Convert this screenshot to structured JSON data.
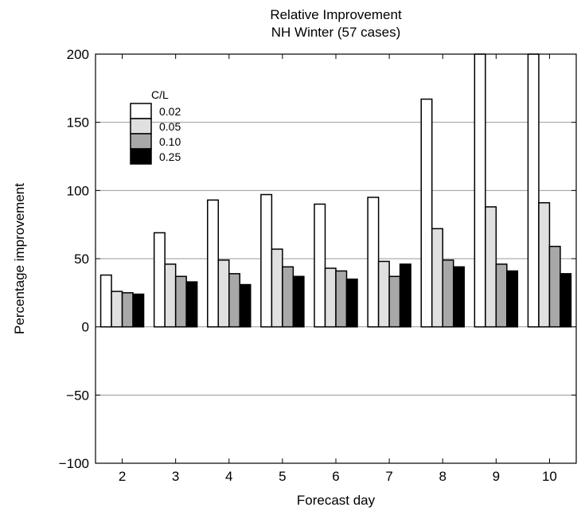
{
  "chart_data": {
    "type": "bar",
    "title": "Relative Improvement",
    "subtitle": "NH Winter (57 cases)",
    "xlabel": "Forecast day",
    "ylabel": "Percentage improvement",
    "ylim": [
      -100,
      200
    ],
    "yticks": [
      -100,
      -50,
      0,
      50,
      100,
      150,
      200
    ],
    "categories": [
      "2",
      "3",
      "4",
      "5",
      "6",
      "7",
      "8",
      "9",
      "10"
    ],
    "grid": "horizontal",
    "legend": {
      "title": "C/L",
      "placement": "top-left"
    },
    "series": [
      {
        "name": "0.02",
        "color": "#ffffff",
        "values": [
          38,
          69,
          93,
          97,
          90,
          95,
          167,
          200,
          200
        ]
      },
      {
        "name": "0.05",
        "color": "#e0e0e0",
        "values": [
          26,
          46,
          49,
          57,
          43,
          48,
          72,
          88,
          91
        ]
      },
      {
        "name": "0.10",
        "color": "#a8a8a8",
        "values": [
          25,
          37,
          39,
          44,
          41,
          37,
          49,
          46,
          59
        ]
      },
      {
        "name": "0.25",
        "color": "#000000",
        "values": [
          24,
          33,
          31,
          37,
          35,
          46,
          44,
          41,
          39
        ]
      }
    ]
  }
}
